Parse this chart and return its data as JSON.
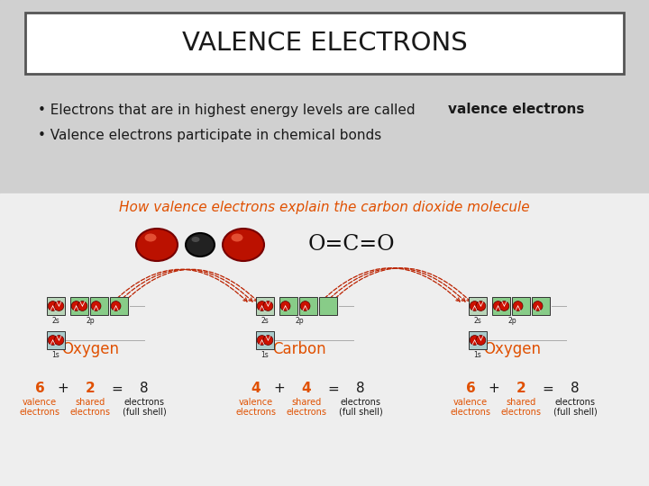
{
  "title": "VALENCE ELECTRONS",
  "slide_bg": "#cccccc",
  "title_bg": "#ffffff",
  "title_border": "#555555",
  "upper_bg": "#d4d4d4",
  "lower_bg": "#f0f0f0",
  "bullet1_pre": "• Electrons that are in highest energy levels are called ",
  "bullet1_bold": "valence electrons",
  "bullet1_post": ".",
  "bullet2": "• Valence electrons participate in chemical bonds",
  "subtitle": "How valence electrons explain the carbon dioxide molecule",
  "subtitle_color": "#e05000",
  "label_color": "#e05000",
  "text_color": "#1a1a1a",
  "formula": "O=C=O",
  "o_label": "Oxygen",
  "c_label": "Carbon",
  "eq_o1": {
    "nums": [
      "6",
      "+",
      "2",
      "=",
      "8"
    ],
    "r2": [
      "valence",
      "",
      "shared",
      "",
      "electrons"
    ],
    "r3": [
      "electrons",
      "",
      "electrons",
      "",
      "(full shell)"
    ],
    "red": [
      0,
      2
    ]
  },
  "eq_c": {
    "nums": [
      "4",
      "+",
      "4",
      "=",
      "8"
    ],
    "r2": [
      "valence",
      "",
      "shared",
      "",
      "electrons"
    ],
    "r3": [
      "electrons",
      "",
      "electrons",
      "",
      "(full shell)"
    ],
    "red": [
      0,
      2
    ]
  },
  "eq_o2": {
    "nums": [
      "6",
      "+",
      "2",
      "=",
      "8"
    ],
    "r2": [
      "valence",
      "",
      "shared",
      "",
      "electrons"
    ],
    "r3": [
      "electrons",
      "",
      "electrons",
      "",
      "(full shell)"
    ],
    "red": [
      0,
      2
    ]
  }
}
